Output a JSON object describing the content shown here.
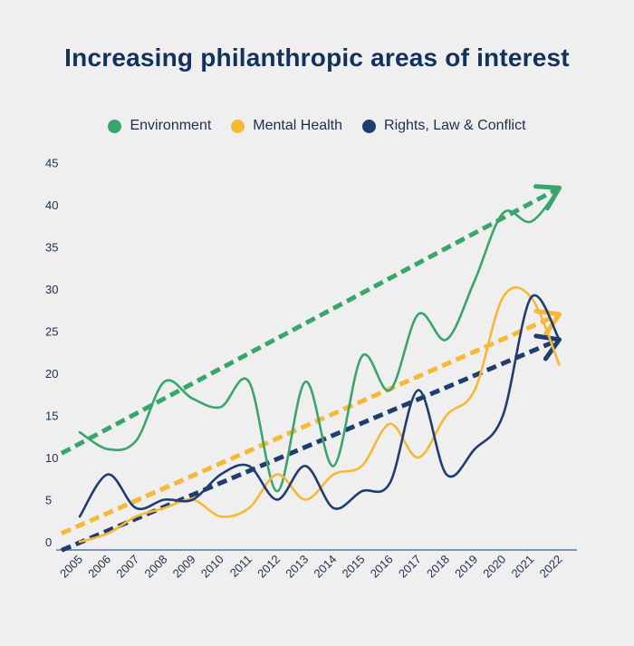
{
  "chart_data": {
    "type": "line",
    "title": "Increasing philanthropic areas of interest",
    "xlabel": "",
    "ylabel": "",
    "x": [
      "2005",
      "2006",
      "2007",
      "2008",
      "2009",
      "2010",
      "2011",
      "2012",
      "2013",
      "2014",
      "2015",
      "2016",
      "2017",
      "2018",
      "2019",
      "2020",
      "2021",
      "2022"
    ],
    "ylim": [
      0,
      45
    ],
    "yticks": [
      0,
      5,
      10,
      15,
      20,
      25,
      30,
      35,
      40,
      45
    ],
    "grid": false,
    "legend": "top",
    "series": [
      {
        "name": "Environment",
        "color": "#3aa56a",
        "values": [
          13,
          11,
          12,
          19,
          17,
          16,
          19,
          6,
          19,
          9,
          22,
          18,
          27,
          24,
          31,
          39,
          38,
          42
        ],
        "trend": [
          10.5,
          42
        ]
      },
      {
        "name": "Mental Health",
        "color": "#f5b935",
        "values": [
          0,
          1,
          3,
          4,
          5,
          3,
          4,
          8,
          5,
          8,
          9,
          14,
          10,
          15,
          18,
          29,
          29,
          21
        ],
        "trend": [
          1,
          27
        ]
      },
      {
        "name": "Rights, Law & Conflict",
        "color": "#1f3d6e",
        "values": [
          3,
          8,
          4,
          5,
          5,
          8,
          9,
          5,
          9,
          4,
          6,
          7,
          18,
          8,
          11,
          15,
          29,
          24
        ],
        "trend": [
          -1,
          24
        ]
      }
    ]
  }
}
